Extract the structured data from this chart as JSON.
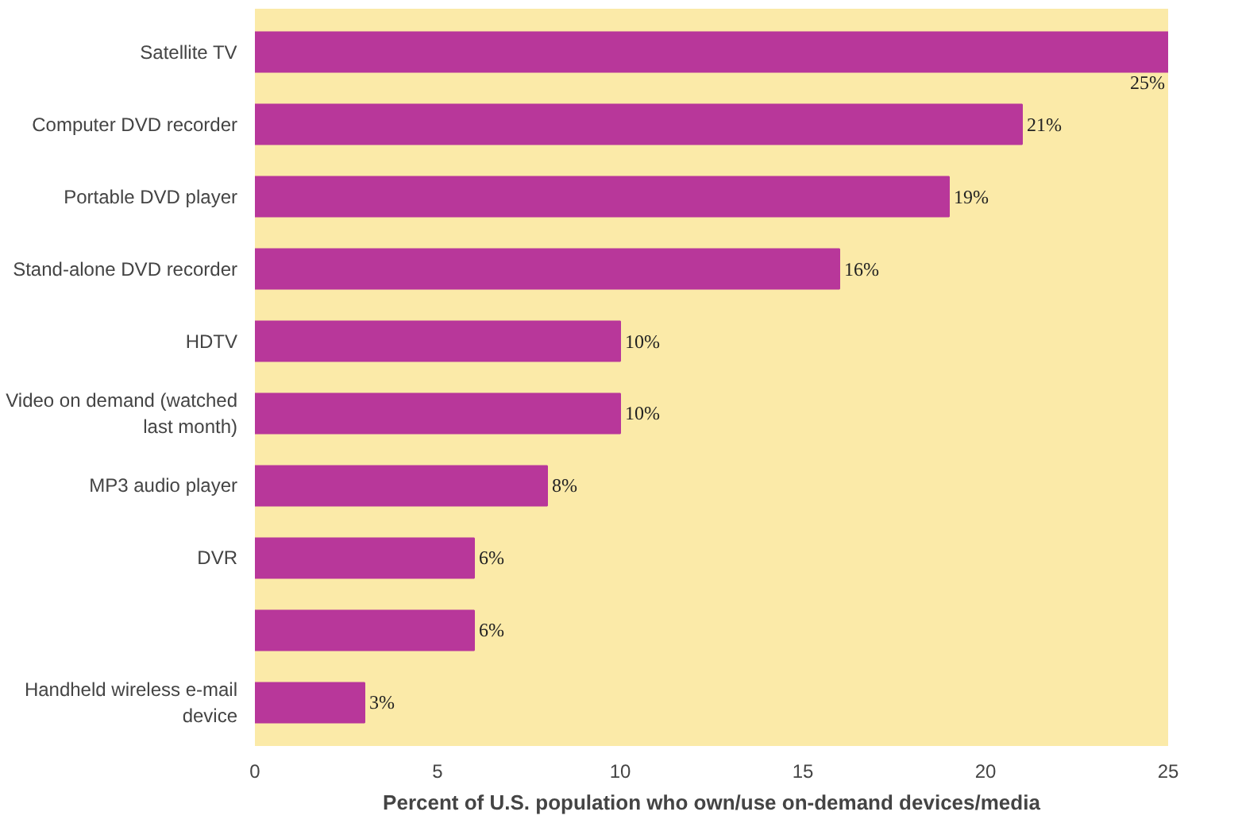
{
  "chart_data": {
    "type": "bar",
    "orientation": "horizontal",
    "xlabel": "Percent of U.S. population who own/use on-demand devices/media",
    "categories": [
      "Satellite TV",
      "Computer DVD recorder",
      "Portable DVD player",
      "Stand-alone DVD recorder",
      "HDTV",
      "Video on demand (watched last month)",
      "MP3 audio player",
      "DVR",
      null,
      "Handheld wireless e-mail device"
    ],
    "values": [
      25,
      21,
      19,
      16,
      10,
      10,
      8,
      6,
      6,
      3
    ],
    "value_labels": [
      "25%",
      "21%",
      "19%",
      "16%",
      "10%",
      "10%",
      "8%",
      "6%",
      "6%",
      "3%"
    ],
    "color": "#b8379a",
    "xlim": [
      0,
      25
    ],
    "xticks": [
      0,
      5,
      10,
      15,
      20,
      25
    ],
    "grid": false
  }
}
